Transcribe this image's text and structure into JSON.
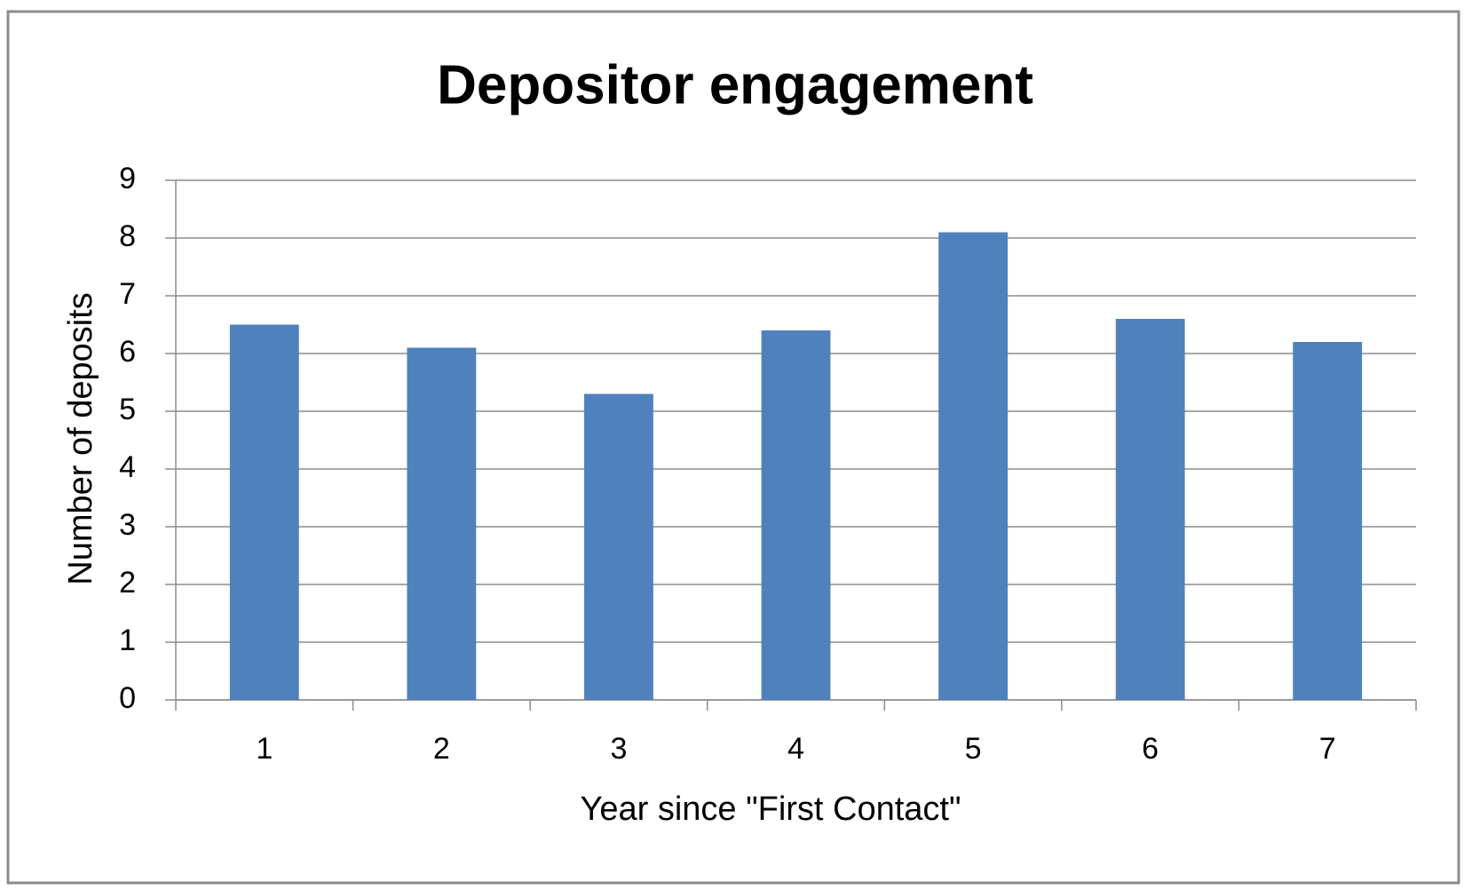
{
  "chart_data": {
    "type": "bar",
    "title": "Depositor engagement",
    "x_label": "Year since \"First Contact\"",
    "y_label": "Number of deposits",
    "categories": [
      "1",
      "2",
      "3",
      "4",
      "5",
      "6",
      "7"
    ],
    "values": [
      6.5,
      6.1,
      5.3,
      6.4,
      8.1,
      6.6,
      6.2
    ],
    "color": "#4f81bd",
    "ylim": [
      0,
      9
    ],
    "yticks": [
      0,
      1,
      2,
      3,
      4,
      5,
      6,
      7,
      8,
      9
    ],
    "grid": true
  }
}
